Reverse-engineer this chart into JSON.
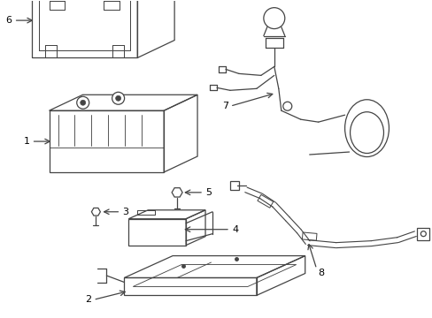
{
  "bg_color": "#ffffff",
  "lc": "#444444",
  "lw": 0.9,
  "fig_width": 4.89,
  "fig_height": 3.6,
  "dpi": 100,
  "label_fs": 8
}
